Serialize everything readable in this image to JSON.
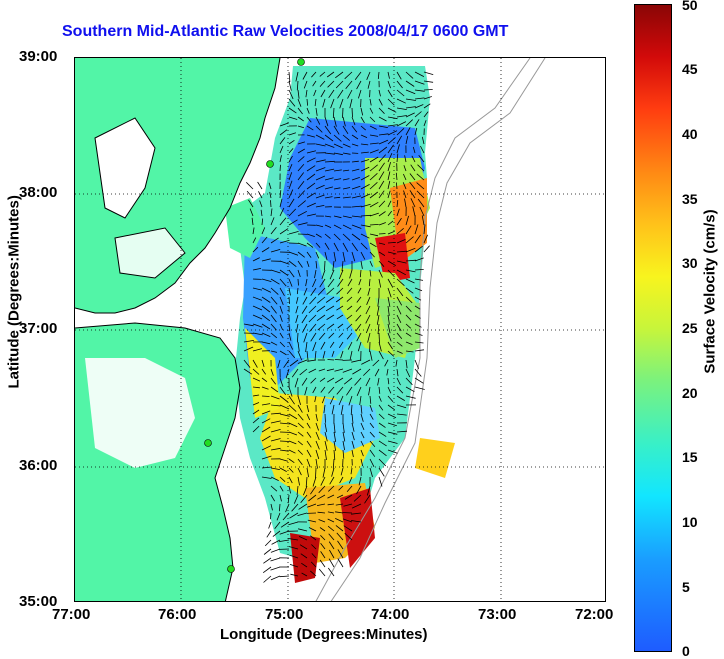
{
  "title": "Southern Mid-Atlantic Raw Velocities 2008/04/17 0600 GMT",
  "xlabel": "Longitude (Degrees:Minutes)",
  "ylabel": "Latitude (Degrees:Minutes)",
  "x_ticks": [
    "77:00",
    "76:00",
    "75:00",
    "74:00",
    "73:00",
    "72:00"
  ],
  "y_ticks": [
    "39:00",
    "38:00",
    "37:00",
    "36:00",
    "35:00"
  ],
  "colorbar": {
    "label": "Surface Velocity (cm/s)",
    "ticks": [
      "50",
      "45",
      "40",
      "35",
      "30",
      "25",
      "20",
      "15",
      "10",
      "5",
      "0"
    ],
    "range": [
      0,
      50
    ],
    "colormap": "jet"
  },
  "colors": {
    "land": "#52f5a7",
    "title": "#1010ee",
    "station": "#22dd22"
  },
  "chart_data": {
    "type": "heatmap",
    "title": "Southern Mid-Atlantic Raw Velocities 2008/04/17 0600 GMT",
    "xlabel": "Longitude (Degrees:Minutes)",
    "ylabel": "Latitude (Degrees:Minutes)",
    "xlim": [
      -77,
      -72
    ],
    "ylim": [
      35,
      39
    ],
    "value_range": [
      0,
      50
    ],
    "value_unit": "cm/s",
    "grid": true
  }
}
